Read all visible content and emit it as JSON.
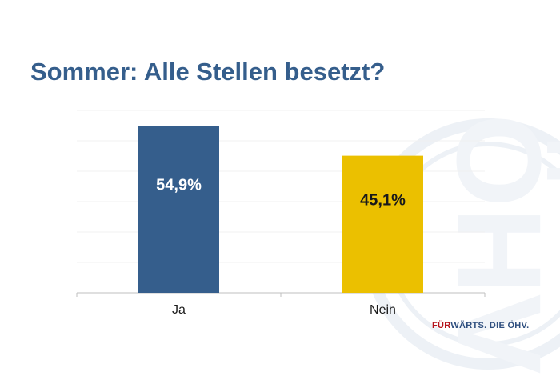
{
  "slide": {
    "title": "Sommer: Alle Stellen besetzt?",
    "tagline_prefix": "FÜR",
    "tagline_rest": "WÄRTS. DIE ÖHV.",
    "watermark_letters": "ÖHV"
  },
  "chart_data": {
    "type": "bar",
    "title": "Sommer: Alle Stellen besetzt?",
    "categories": [
      "Ja",
      "Nein"
    ],
    "values": [
      54.9,
      45.1
    ],
    "data_labels": [
      "54,9%",
      "45,1%"
    ],
    "unit": "%",
    "ylim": [
      0,
      60
    ],
    "grid": true,
    "legend": "none",
    "colors": [
      "#355e8c",
      "#ebc000"
    ],
    "label_colors": [
      "#ffffff",
      "#1a1a1a"
    ]
  }
}
